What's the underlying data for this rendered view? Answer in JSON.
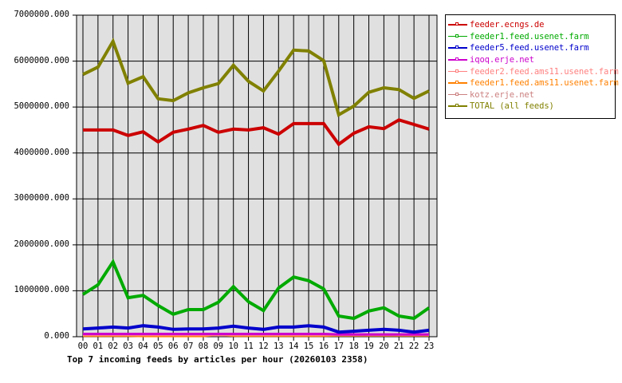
{
  "chart_data": {
    "type": "line",
    "title": "Top 7 incoming feeds by articles per hour (20260103 2358)",
    "xlabel": "",
    "ylabel": "",
    "ylim": [
      0,
      7000000
    ],
    "grid": true,
    "legend_position": "right-top",
    "y_ticks": [
      "0.000",
      "1000000.000",
      "2000000.000",
      "3000000.000",
      "4000000.000",
      "5000000.000",
      "6000000.000",
      "7000000.000"
    ],
    "x": [
      "00",
      "01",
      "02",
      "03",
      "04",
      "05",
      "06",
      "07",
      "08",
      "09",
      "10",
      "11",
      "12",
      "13",
      "14",
      "15",
      "16",
      "17",
      "18",
      "19",
      "20",
      "21",
      "22",
      "23"
    ],
    "series": [
      {
        "name": "feeder.ecngs.de",
        "color": "#cc0000",
        "values": [
          4500000,
          4500000,
          4500000,
          4380000,
          4460000,
          4240000,
          4450000,
          4520000,
          4600000,
          4450000,
          4520000,
          4500000,
          4550000,
          4410000,
          4640000,
          4640000,
          4640000,
          4190000,
          4430000,
          4570000,
          4530000,
          4720000,
          4620000,
          4520000
        ]
      },
      {
        "name": "feeder1.feed.usenet.farm",
        "color": "#00aa00",
        "values": [
          920000,
          1130000,
          1630000,
          850000,
          900000,
          680000,
          490000,
          590000,
          590000,
          750000,
          1090000,
          760000,
          570000,
          1060000,
          1300000,
          1220000,
          1040000,
          450000,
          400000,
          560000,
          630000,
          450000,
          400000,
          630000
        ]
      },
      {
        "name": "feeder5.feed.usenet.farm",
        "color": "#0000cc",
        "values": [
          170000,
          190000,
          210000,
          190000,
          240000,
          210000,
          160000,
          170000,
          170000,
          190000,
          230000,
          190000,
          160000,
          210000,
          210000,
          240000,
          210000,
          100000,
          120000,
          140000,
          160000,
          140000,
          100000,
          140000
        ]
      },
      {
        "name": "iqoq.erje.net",
        "color": "#cc00cc",
        "values": [
          60000,
          60000,
          60000,
          60000,
          60000,
          60000,
          60000,
          60000,
          60000,
          60000,
          60000,
          60000,
          60000,
          60000,
          60000,
          60000,
          60000,
          50000,
          50000,
          50000,
          50000,
          50000,
          50000,
          50000
        ]
      },
      {
        "name": "feeder2.feed.ams11.usenet.farm",
        "color": "#ff8080",
        "values": [
          40000,
          40000,
          40000,
          40000,
          40000,
          40000,
          40000,
          40000,
          40000,
          40000,
          40000,
          40000,
          40000,
          40000,
          40000,
          40000,
          40000,
          40000,
          40000,
          40000,
          40000,
          40000,
          40000,
          40000
        ]
      },
      {
        "name": "feeder1.feed.ams11.usenet.farm",
        "color": "#ff8000",
        "values": [
          20000,
          20000,
          20000,
          20000,
          15000,
          15000,
          15000,
          15000,
          15000,
          50000,
          20000,
          20000,
          20000,
          20000,
          20000,
          20000,
          20000,
          30000,
          30000,
          30000,
          30000,
          30000,
          30000,
          30000
        ]
      },
      {
        "name": "kotz.erje.net",
        "color": "#cc8080",
        "values": [
          30000,
          30000,
          30000,
          30000,
          30000,
          30000,
          30000,
          30000,
          30000,
          30000,
          30000,
          30000,
          30000,
          30000,
          30000,
          30000,
          30000,
          30000,
          30000,
          30000,
          30000,
          30000,
          30000,
          30000
        ]
      },
      {
        "name": "TOTAL (all feeds)",
        "color": "#808000",
        "values": [
          5710000,
          5870000,
          6430000,
          5520000,
          5660000,
          5180000,
          5140000,
          5310000,
          5420000,
          5510000,
          5910000,
          5560000,
          5350000,
          5780000,
          6240000,
          6220000,
          6010000,
          4830000,
          5020000,
          5320000,
          5420000,
          5380000,
          5190000,
          5350000
        ]
      }
    ]
  },
  "legend": {
    "items": [
      {
        "label": "feeder.ecngs.de",
        "color": "#cc0000"
      },
      {
        "label": "feeder1.feed.usenet.farm",
        "color": "#00aa00"
      },
      {
        "label": "feeder5.feed.usenet.farm",
        "color": "#0000cc"
      },
      {
        "label": "iqoq.erje.net",
        "color": "#cc00cc"
      },
      {
        "label": "feeder2.feed.ams11.usenet.farm",
        "color": "#ff8080"
      },
      {
        "label": "feeder1.feed.ams11.usenet.farm",
        "color": "#ff8000"
      },
      {
        "label": "kotz.erje.net",
        "color": "#cc8080"
      },
      {
        "label": "TOTAL (all feeds)",
        "color": "#808000"
      }
    ]
  },
  "title": "Top 7 incoming feeds by articles per hour (20260103 2358)",
  "colors": {
    "plot_bg": "#e0e0e0",
    "grid": "#000000"
  }
}
